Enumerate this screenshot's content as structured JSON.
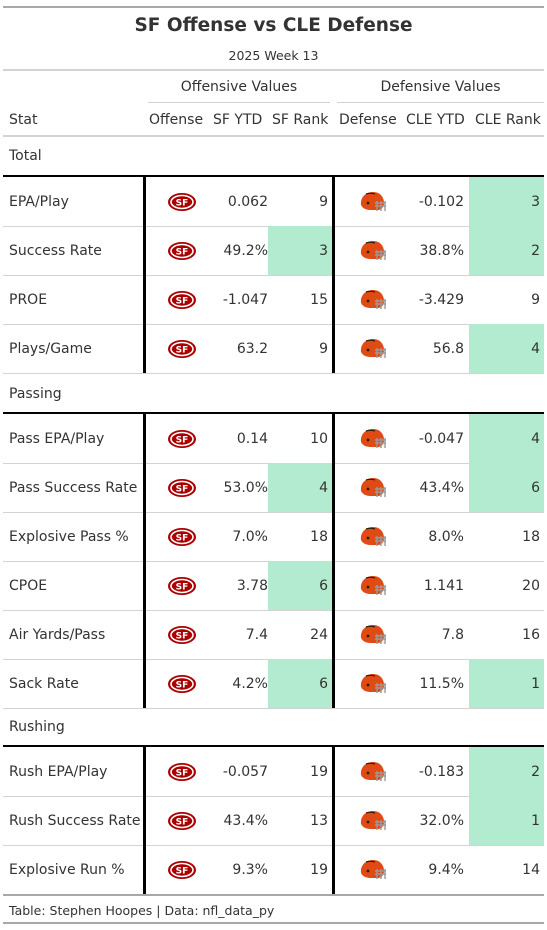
{
  "title": "SF Offense vs CLE Defense",
  "subtitle": "2025 Week 13",
  "spanners": {
    "offense": "Offensive Values",
    "defense": "Defensive Values"
  },
  "columns": {
    "stat": "Stat",
    "offense": "Offense",
    "sf_ytd": "SF YTD",
    "sf_rank": "SF Rank",
    "defense": "Defense",
    "cle_ytd": "CLE YTD",
    "cle_rank": "CLE Rank"
  },
  "colors": {
    "highlight": "#b2ebcf",
    "niners_red": "#aa0000",
    "niners_gold": "#b3995d",
    "browns_orange": "#e04a14",
    "browns_brown": "#311d00"
  },
  "icons": {
    "offense_logo": "sf-49ers-logo-icon",
    "defense_logo": "cle-browns-helmet-icon"
  },
  "groups": [
    {
      "label": "Total",
      "rows": [
        {
          "stat": "EPA/Play",
          "sf_ytd": "0.062",
          "sf_rank": "9",
          "sf_hl": false,
          "cle_ytd": "-0.102",
          "cle_rank": "3",
          "cle_hl": true
        },
        {
          "stat": "Success Rate",
          "sf_ytd": "49.2%",
          "sf_rank": "3",
          "sf_hl": true,
          "cle_ytd": "38.8%",
          "cle_rank": "2",
          "cle_hl": true
        },
        {
          "stat": "PROE",
          "sf_ytd": "-1.047",
          "sf_rank": "15",
          "sf_hl": false,
          "cle_ytd": "-3.429",
          "cle_rank": "9",
          "cle_hl": false
        },
        {
          "stat": "Plays/Game",
          "sf_ytd": "63.2",
          "sf_rank": "9",
          "sf_hl": false,
          "cle_ytd": "56.8",
          "cle_rank": "4",
          "cle_hl": true
        }
      ]
    },
    {
      "label": "Passing",
      "rows": [
        {
          "stat": "Pass EPA/Play",
          "sf_ytd": "0.14",
          "sf_rank": "10",
          "sf_hl": false,
          "cle_ytd": "-0.047",
          "cle_rank": "4",
          "cle_hl": true
        },
        {
          "stat": "Pass Success Rate",
          "sf_ytd": "53.0%",
          "sf_rank": "4",
          "sf_hl": true,
          "cle_ytd": "43.4%",
          "cle_rank": "6",
          "cle_hl": true
        },
        {
          "stat": "Explosive Pass %",
          "sf_ytd": "7.0%",
          "sf_rank": "18",
          "sf_hl": false,
          "cle_ytd": "8.0%",
          "cle_rank": "18",
          "cle_hl": false
        },
        {
          "stat": "CPOE",
          "sf_ytd": "3.78",
          "sf_rank": "6",
          "sf_hl": true,
          "cle_ytd": "1.141",
          "cle_rank": "20",
          "cle_hl": false
        },
        {
          "stat": "Air Yards/Pass",
          "sf_ytd": "7.4",
          "sf_rank": "24",
          "sf_hl": false,
          "cle_ytd": "7.8",
          "cle_rank": "16",
          "cle_hl": false
        },
        {
          "stat": "Sack Rate",
          "sf_ytd": "4.2%",
          "sf_rank": "6",
          "sf_hl": true,
          "cle_ytd": "11.5%",
          "cle_rank": "1",
          "cle_hl": true
        }
      ]
    },
    {
      "label": "Rushing",
      "rows": [
        {
          "stat": "Rush EPA/Play",
          "sf_ytd": "-0.057",
          "sf_rank": "19",
          "sf_hl": false,
          "cle_ytd": "-0.183",
          "cle_rank": "2",
          "cle_hl": true
        },
        {
          "stat": "Rush Success Rate",
          "sf_ytd": "43.4%",
          "sf_rank": "13",
          "sf_hl": false,
          "cle_ytd": "32.0%",
          "cle_rank": "1",
          "cle_hl": true
        },
        {
          "stat": "Explosive Run %",
          "sf_ytd": "9.3%",
          "sf_rank": "19",
          "sf_hl": false,
          "cle_ytd": "9.4%",
          "cle_rank": "14",
          "cle_hl": false
        }
      ]
    }
  ],
  "footer": "Table: Stephen Hoopes | Data: nfl_data_py"
}
